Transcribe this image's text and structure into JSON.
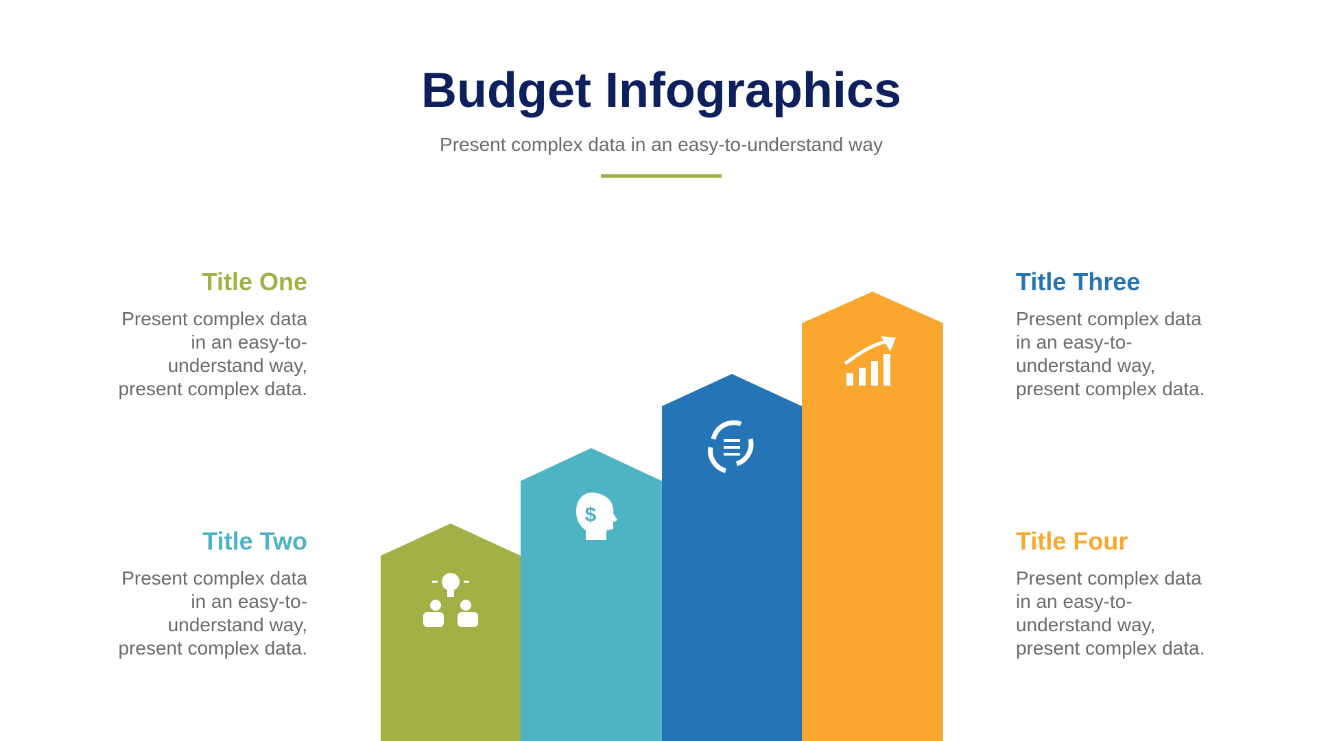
{
  "header": {
    "title": "Budget Infographics",
    "subtitle": "Present complex data in an easy-to-understand way"
  },
  "items": [
    {
      "title": "Title One",
      "lines": [
        "Present complex data",
        "in an easy-to-",
        "understand way,",
        "present complex data."
      ]
    },
    {
      "title": "Title Two",
      "lines": [
        "Present complex data",
        "in an easy-to-",
        "understand way,",
        "present complex data."
      ]
    },
    {
      "title": "Title Three",
      "lines": [
        "Present complex data",
        "in an easy-to-",
        "understand way,",
        "present complex data."
      ]
    },
    {
      "title": "Title Four",
      "lines": [
        "Present complex data",
        "in an easy-to-",
        "understand way,",
        "present complex data."
      ]
    }
  ]
}
